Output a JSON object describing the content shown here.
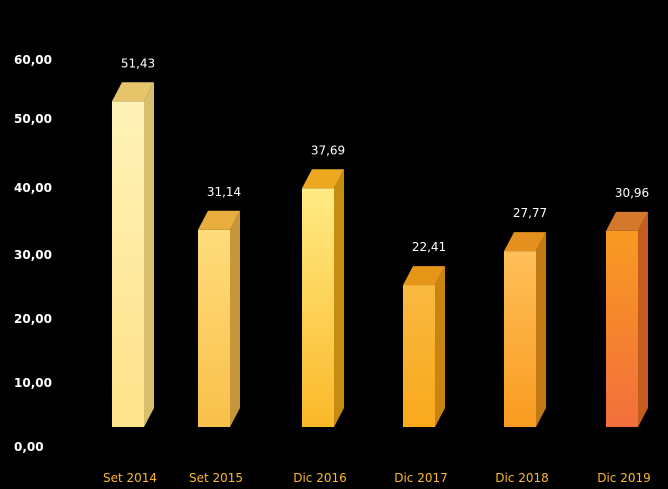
{
  "chart_data": {
    "type": "bar",
    "categories": [
      "Set 2014",
      "Set 2015",
      "Dic 2016",
      "Dic 2017",
      "Dic 2018",
      "Dic 2019"
    ],
    "values": [
      51.43,
      31.14,
      37.69,
      22.41,
      27.77,
      30.96
    ],
    "value_labels": [
      "51,43",
      "31,14",
      "37,69",
      "22,41",
      "27,77",
      "30,96"
    ],
    "y_ticks": [
      "0,00",
      "10,00",
      "20,00",
      "30,00",
      "40,00",
      "50,00",
      "60,00"
    ],
    "ylim": [
      0,
      60
    ],
    "grid": false,
    "style": "3d-column",
    "colors": {
      "background": "#000000",
      "text": "#ffffff",
      "category_label": "#fbb829",
      "bar_fronts": [
        [
          "#fff2b8",
          "#ffe28a"
        ],
        [
          "#ffdc7c",
          "#f9c04a"
        ],
        [
          "#ffeb84",
          "#fbb829"
        ],
        [
          "#f9b940",
          "#f9a91c"
        ],
        [
          "#ffbf58",
          "#f99b20"
        ],
        [
          "#f99a21",
          "#f26f3c"
        ]
      ],
      "bar_sides": [
        "#d8bf6e",
        "#c8963a",
        "#c58e12",
        "#c9850f",
        "#c27a16",
        "#c25d1e"
      ],
      "bar_tops": [
        "#e6c56a",
        "#e9ad3e",
        "#eea820",
        "#e69616",
        "#e48f1e",
        "#d4782c"
      ]
    }
  }
}
